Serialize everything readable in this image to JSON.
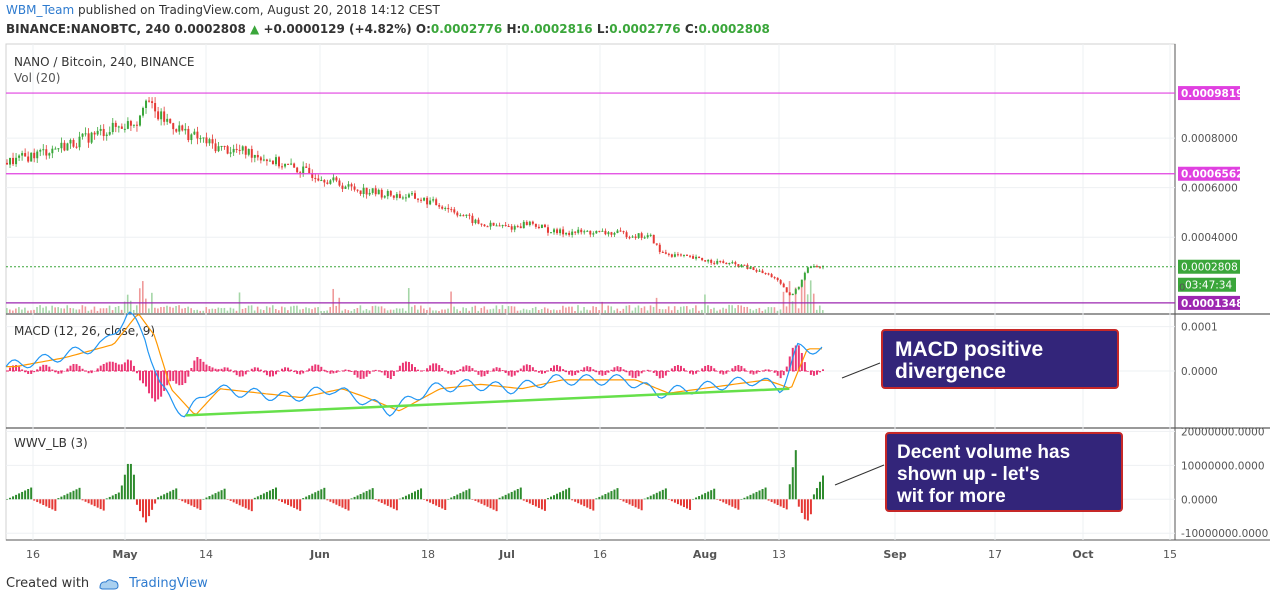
{
  "header": {
    "user": "WBM_Team",
    "published": "published on TradingView.com, August 20, 2018 14:12 CEST",
    "symbol": "BINANCE:NANOBTC, 240",
    "last": "0.0002808",
    "change": "+0.0000129 (+4.82%)",
    "o_label": "O:",
    "o": "0.0002776",
    "h_label": "H:",
    "h": "0.0002816",
    "l_label": "L:",
    "l": "0.0002776",
    "c_label": "C:",
    "c": "0.0002808"
  },
  "footer": {
    "created_with": "Created with",
    "brand": "TradingView"
  },
  "callouts": {
    "macd": [
      "MACD positive",
      "divergence"
    ],
    "volume": [
      "Decent volume has",
      "shown up - let's",
      "wit for more"
    ]
  },
  "colors": {
    "up": "#3aa63a",
    "down": "#e53935",
    "hline": "#e040e0",
    "macd": "#2196f3",
    "signal": "#ff9800",
    "hist_pos": "#e91e63",
    "trend": "#66e04a",
    "callout_bg": "#33257a",
    "callout_border": "#c62828"
  },
  "chart_data": [
    {
      "type": "candlestick",
      "title": "NANO / Bitcoin, 240, BINANCE",
      "sub_indicator": "Vol (20)",
      "x_ticks": [
        "16",
        "May",
        "14",
        "Jun",
        "18",
        "Jul",
        "16",
        "Aug",
        "13",
        "Sep",
        "17",
        "Oct",
        "15"
      ],
      "y_ticks": [
        "0.0008000",
        "0.0006000",
        "0.0004000"
      ],
      "ylim": [
        9e-05,
        0.00118
      ],
      "close_path": [
        [
          0,
          0.0007
        ],
        [
          4,
          0.00074
        ],
        [
          8,
          0.00078
        ],
        [
          12,
          0.00083
        ],
        [
          16,
          0.00087
        ],
        [
          17,
          0.00098
        ],
        [
          18,
          0.0009
        ],
        [
          22,
          0.00082
        ],
        [
          26,
          0.00076
        ],
        [
          30,
          0.00074
        ],
        [
          34,
          0.00069
        ],
        [
          38,
          0.00065
        ],
        [
          42,
          0.0006
        ],
        [
          46,
          0.000575
        ],
        [
          50,
          0.00056
        ],
        [
          54,
          0.00052
        ],
        [
          58,
          0.00045
        ],
        [
          62,
          0.00044
        ],
        [
          64,
          0.00046
        ],
        [
          67,
          0.00042
        ],
        [
          71,
          0.00042
        ],
        [
          75,
          0.000415
        ],
        [
          79,
          0.0004
        ],
        [
          80,
          0.00034
        ],
        [
          83,
          0.00032
        ],
        [
          87,
          0.0003
        ],
        [
          90,
          0.000285
        ],
        [
          94,
          0.00024
        ],
        [
          96,
          0.00016
        ],
        [
          97,
          0.0002
        ],
        [
          98,
          0.00028
        ],
        [
          100,
          0.000281
        ]
      ],
      "levels": [
        {
          "label": "0.0009819",
          "value": 0.0009819,
          "color": "#e040e0"
        },
        {
          "label": "0.0006562",
          "value": 0.0006562,
          "color": "#e040e0"
        },
        {
          "label": "0.0001348",
          "value": 0.0001348,
          "color": "#9c27b0"
        }
      ],
      "last_price": {
        "label": "0.0002808",
        "value": 0.0002808
      },
      "countdown": "03:47:34",
      "small_tick": "0"
    },
    {
      "type": "line",
      "title": "MACD (12, 26, close, 9)",
      "y_ticks": [
        "0.0001",
        "0.0000"
      ],
      "series": [
        {
          "name": "MACD",
          "points": [
            [
              0,
              1e-05
            ],
            [
              6,
              3e-05
            ],
            [
              12,
              6e-05
            ],
            [
              15,
              0.00013
            ],
            [
              17,
              8e-05
            ],
            [
              19,
              -4e-05
            ],
            [
              22,
              -0.0001
            ],
            [
              25,
              -4e-05
            ],
            [
              30,
              -5e-05
            ],
            [
              35,
              -6e-05
            ],
            [
              40,
              -4e-05
            ],
            [
              43,
              -6e-05
            ],
            [
              47,
              -9e-05
            ],
            [
              52,
              -4e-05
            ],
            [
              57,
              -3e-05
            ],
            [
              62,
              -4e-05
            ],
            [
              67,
              -2e-05
            ],
            [
              72,
              -2e-05
            ],
            [
              76,
              -2e-05
            ],
            [
              80,
              -5e-05
            ],
            [
              84,
              -4e-05
            ],
            [
              88,
              -3e-05
            ],
            [
              92,
              -2e-05
            ],
            [
              95,
              -4e-05
            ],
            [
              97,
              5e-05
            ],
            [
              100,
              5e-05
            ]
          ]
        }
      ],
      "trendline": [
        [
          22,
          -0.0001
        ],
        [
          96,
          -4e-05
        ]
      ],
      "callout": "MACD positive divergence"
    },
    {
      "type": "bar",
      "title": "WWV_LB (3)",
      "y_ticks": [
        "20000000.0000",
        "10000000.0000",
        "0.0000",
        "-10000000.0000"
      ],
      "ylim": [
        -12000000,
        21000000
      ],
      "spikes": [
        {
          "x": 15,
          "value": 12000000
        },
        {
          "x": 17,
          "value": -7000000
        },
        {
          "x": 97,
          "value": 19000000
        },
        {
          "x": 98,
          "value": -7000000
        },
        {
          "x": 100,
          "value": 7000000
        }
      ],
      "callout": "Decent volume has shown up - let's wit for more"
    }
  ]
}
